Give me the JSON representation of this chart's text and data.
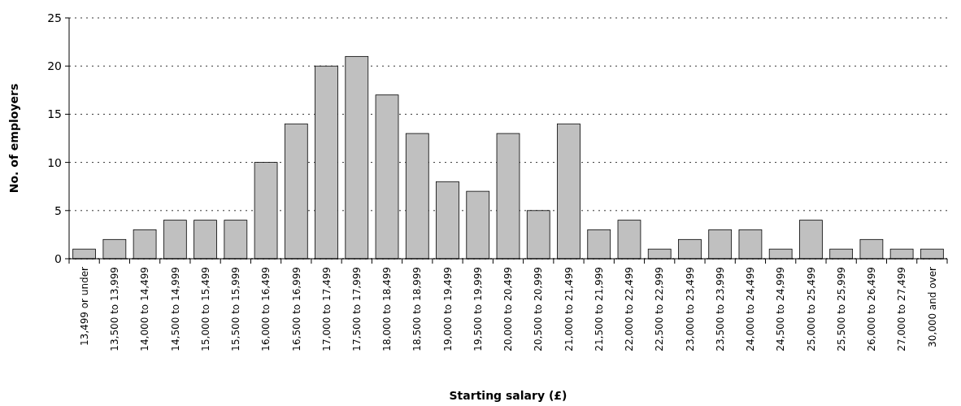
{
  "chart_data": {
    "type": "bar",
    "xlabel": "Starting salary (£)",
    "ylabel": "No. of employers",
    "categories": [
      "13,499 or under",
      "13,500 to 13,999",
      "14,000 to 14,499",
      "14,500 to 14,999",
      "15,000 to 15,499",
      "15,500 to 15,999",
      "16,000 to 16,499",
      "16,500 to 16,999",
      "17,000 to 17,499",
      "17,500 to 17,999",
      "18,000 to 18,499",
      "18,500 to 18,999",
      "19,000 to 19,499",
      "19,500 to 19,999",
      "20,000 to 20,499",
      "20,500 to 20,999",
      "21,000 to 21,499",
      "21,500 to 21,999",
      "22,000 to 22,499",
      "22,500 to 22,999",
      "23,000 to 23,499",
      "23,500 to 23,999",
      "24,000 to 24,499",
      "24,500 to 24,999",
      "25,000 to 25,499",
      "25,500 to 25,999",
      "26,000 to 26,499",
      "27,000 to 27,499",
      "30,000 and over"
    ],
    "values": [
      1,
      2,
      3,
      4,
      4,
      4,
      10,
      14,
      20,
      21,
      17,
      13,
      8,
      7,
      13,
      5,
      14,
      3,
      4,
      1,
      2,
      3,
      3,
      1,
      4,
      1,
      2,
      1,
      1
    ],
    "color": "#c0c0c0",
    "ylim": [
      0,
      25
    ],
    "yticks": [
      0,
      5,
      10,
      15,
      20,
      25
    ],
    "grid": "y"
  }
}
